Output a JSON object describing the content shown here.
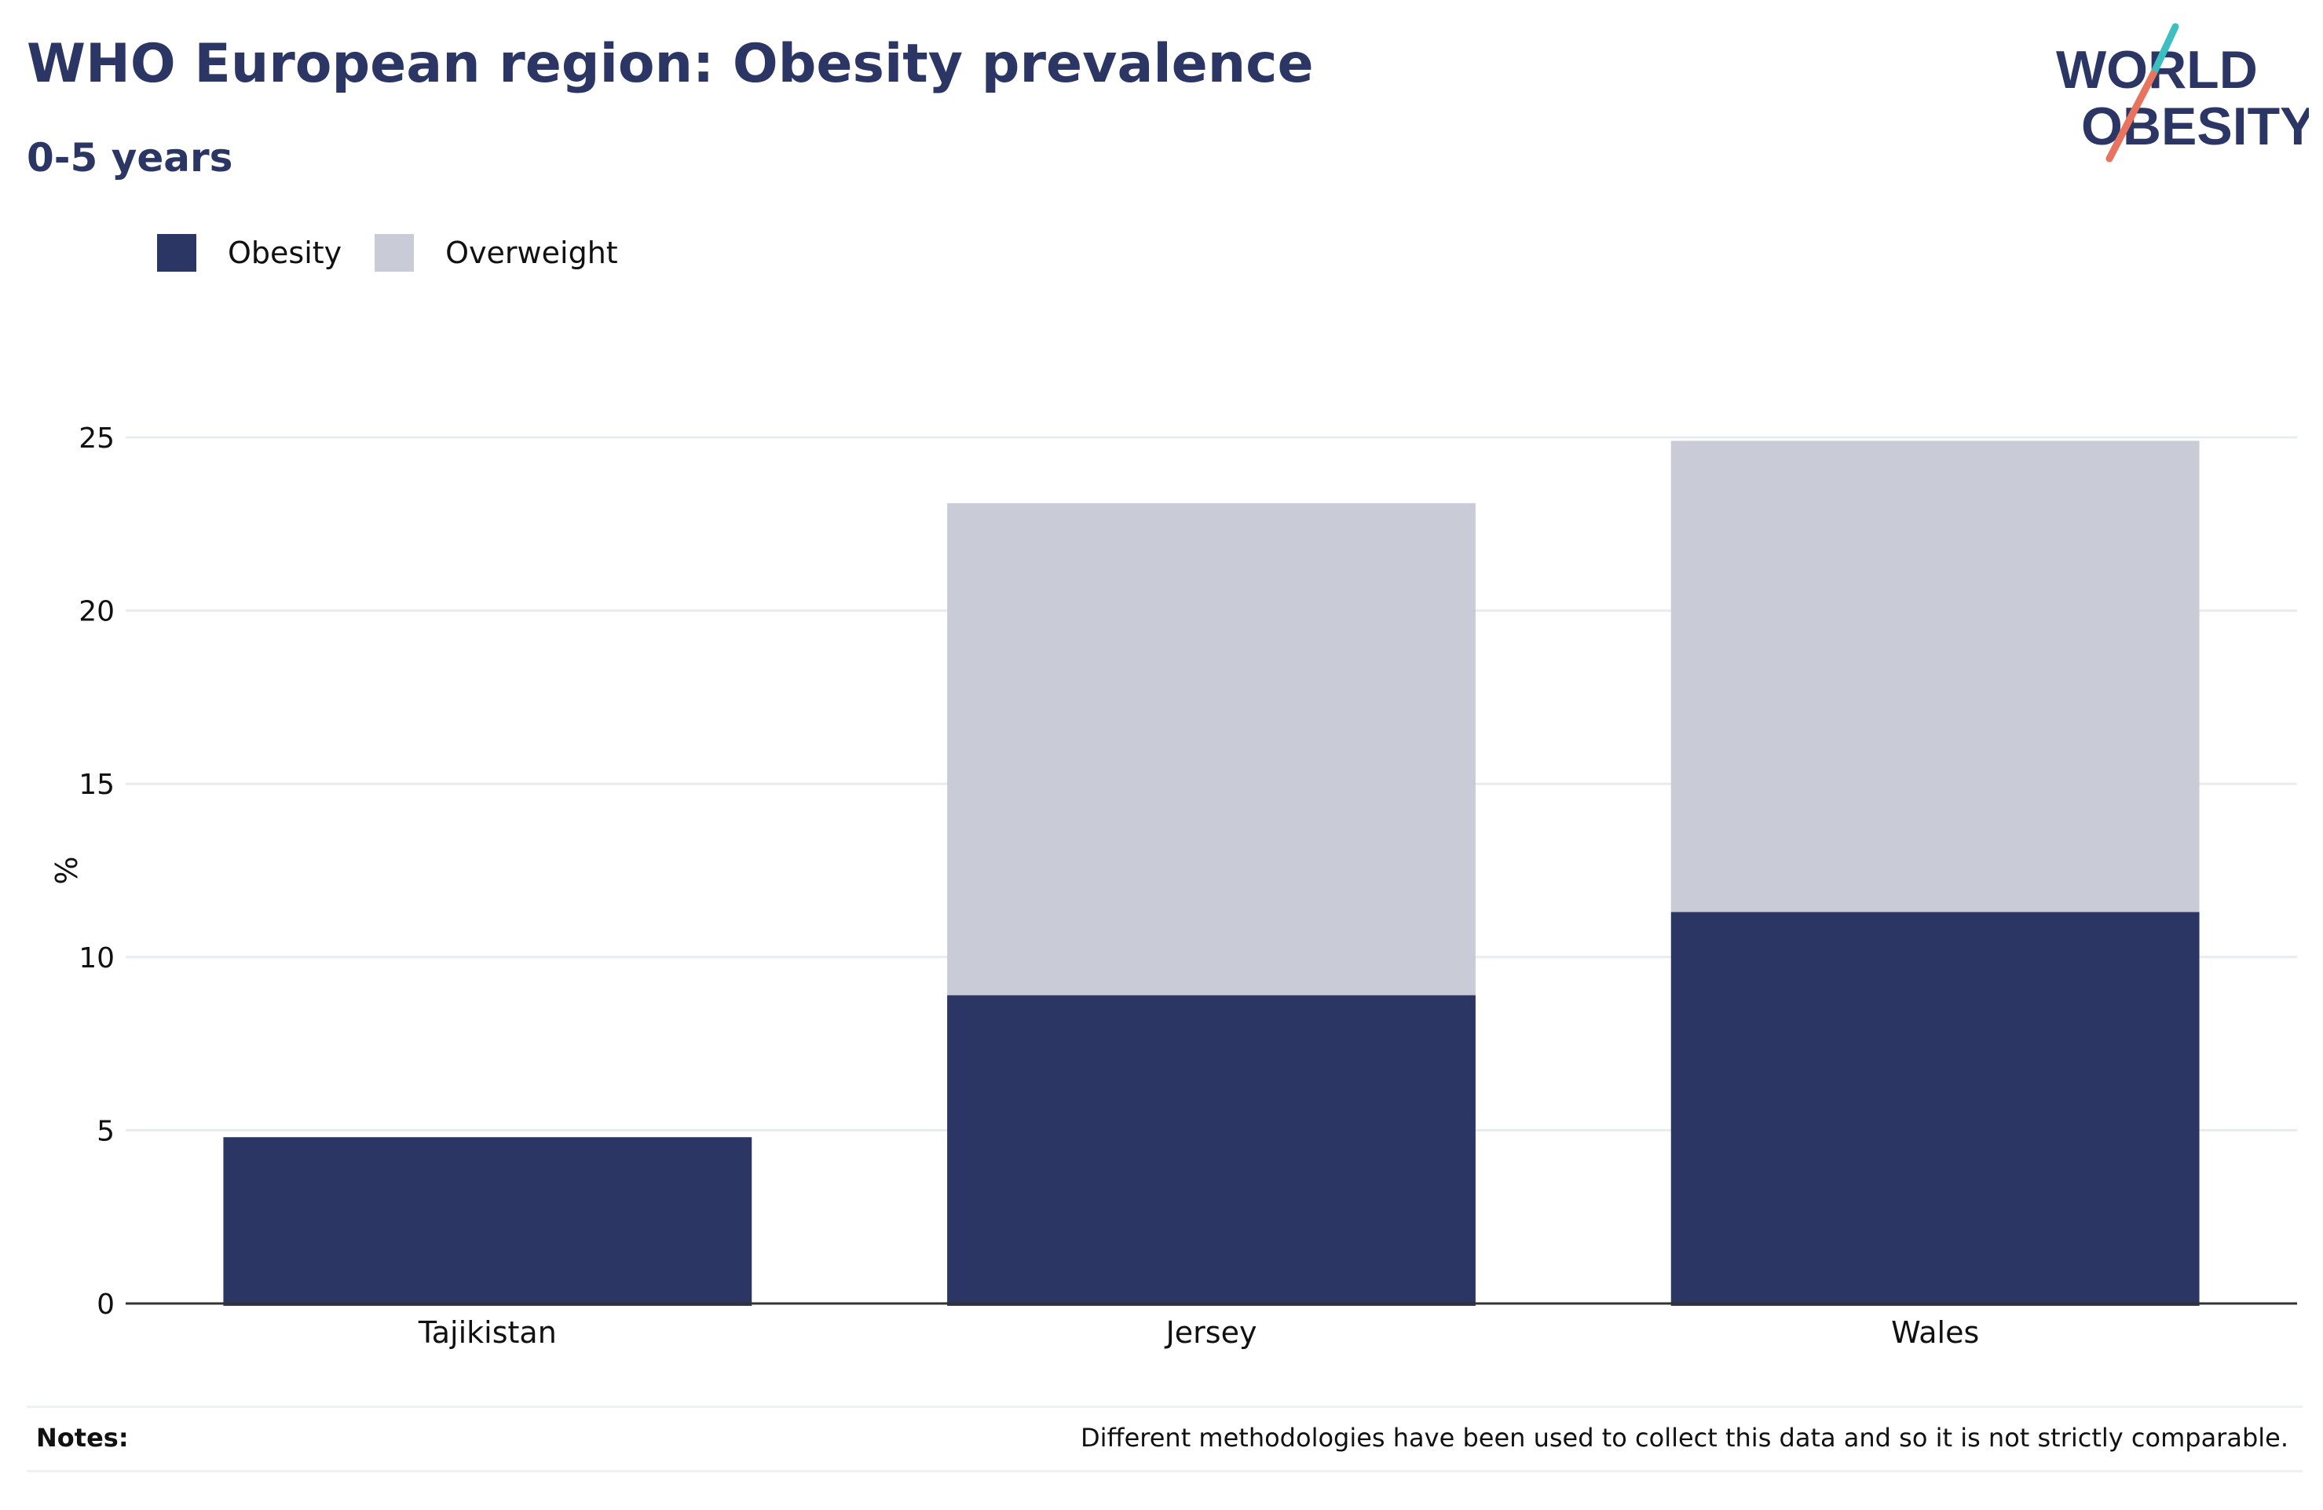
{
  "header": {
    "title": "WHO European region: Obesity prevalence",
    "subtitle": "0-5 years"
  },
  "logo": {
    "line1": "WORLD",
    "line2": "OBESITY",
    "colors": {
      "text": "#2b3664",
      "teal": "#3bbfc0",
      "coral": "#e8735e"
    }
  },
  "legend": {
    "items": [
      {
        "label": "Obesity",
        "color": "#2b3664"
      },
      {
        "label": "Overweight",
        "color": "#c9cbd6"
      }
    ]
  },
  "chart_data": {
    "type": "bar",
    "stacked": true,
    "categories": [
      "Tajikistan",
      "Jersey",
      "Wales"
    ],
    "series": [
      {
        "name": "Obesity",
        "values": [
          4.8,
          8.9,
          11.3
        ],
        "color": "#2b3664"
      },
      {
        "name": "Overweight",
        "values": [
          0,
          14.2,
          13.6
        ],
        "color": "#c9cbd6"
      }
    ],
    "xlabel": "",
    "ylabel": "%",
    "ylim": [
      0,
      25
    ],
    "yticks": [
      0,
      5,
      10,
      15,
      20,
      25
    ],
    "grid": true,
    "legend_position": "top-left"
  },
  "notes": {
    "label": "Notes:",
    "text": "Different methodologies have been used to collect this data and so it is not strictly comparable."
  }
}
